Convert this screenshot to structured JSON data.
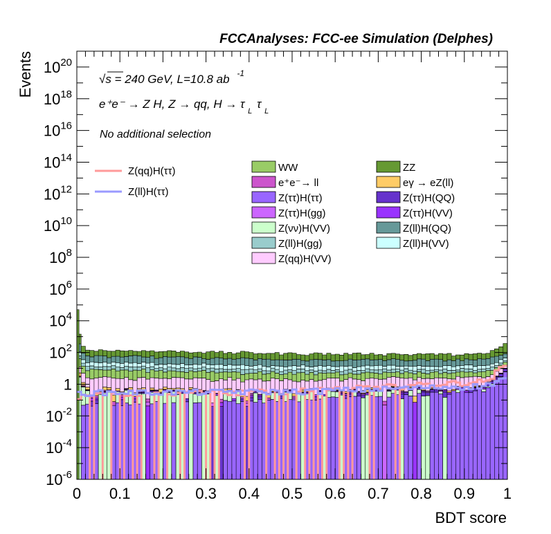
{
  "chart_data": {
    "type": "histogram",
    "title": "FCCAnalyses: FCC-ee Simulation (Delphes)",
    "xlabel": "BDT score",
    "ylabel": "Events",
    "xlim": [
      0,
      1
    ],
    "ylim": [
      1e-06,
      1e+21
    ],
    "log_y": true,
    "x_ticks": [
      "0",
      "0.1",
      "0.2",
      "0.3",
      "0.4",
      "0.5",
      "0.6",
      "0.7",
      "0.8",
      "0.9",
      "1"
    ],
    "y_ticks": [
      {
        "base": "10",
        "exp": "20"
      },
      {
        "base": "10",
        "exp": "18"
      },
      {
        "base": "10",
        "exp": "16"
      },
      {
        "base": "10",
        "exp": "14"
      },
      {
        "base": "10",
        "exp": "12"
      },
      {
        "base": "10",
        "exp": "10"
      },
      {
        "base": "10",
        "exp": "8"
      },
      {
        "base": "10",
        "exp": "6"
      },
      {
        "base": "10",
        "exp": "4"
      },
      {
        "base": "10",
        "exp": "2"
      },
      {
        "base": "1",
        "exp": ""
      },
      {
        "base": "10",
        "exp": "-2"
      },
      {
        "base": "10",
        "exp": "-4"
      },
      {
        "base": "10",
        "exp": "-6"
      }
    ],
    "annotations": {
      "energy": "√s = 240 GeV, L=10.8 ab",
      "energy_exp": "-1",
      "process": "e⁺e⁻ → Z H, Z → qq, H → τ",
      "process_sub1": "L",
      "process_tau2": "τ",
      "process_sub2": "L",
      "selection": "No additional selection"
    },
    "signals": [
      {
        "name": "Z(qq)H(ττ)",
        "color": "#ff9a9a",
        "level": [
          0.1,
          0.25,
          0.35,
          1.5,
          20
        ]
      },
      {
        "name": "Z(ll)H(ττ)",
        "color": "#9a9aff",
        "level": [
          0.25,
          0.3,
          0.35,
          0.8,
          3
        ]
      }
    ],
    "backgrounds": [
      {
        "name": "WW",
        "color": "#99cc66",
        "level": [
          40,
          6,
          3,
          3,
          12
        ]
      },
      {
        "name": "ZZ",
        "color": "#669933",
        "level": [
          2000,
          80,
          50,
          40,
          300
        ]
      },
      {
        "name": "e⁺e⁻→ ll",
        "color": "#cc55cc",
        "level": [
          0.5,
          0.05,
          0.03,
          0.03,
          0.05
        ]
      },
      {
        "name": "eγ → eZ(ll)",
        "color": "#ffcc66",
        "level": [
          5,
          0.2,
          0.1,
          0.1,
          0.2
        ]
      },
      {
        "name": "Z(ττ)H(ττ)",
        "color": "#9966ff",
        "level": [
          0.03,
          0.05,
          0.1,
          0.4,
          8
        ]
      },
      {
        "name": "Z(ττ)H(QQ)",
        "color": "#6633cc",
        "level": [
          0.1,
          0.05,
          0.05,
          0.2,
          3
        ]
      },
      {
        "name": "Z(ττ)H(gg)",
        "color": "#cc66ff",
        "level": [
          0.05,
          0.03,
          0.03,
          0.05,
          0.3
        ]
      },
      {
        "name": "Z(ττ)H(VV)",
        "color": "#9933ff",
        "level": [
          0.05,
          0.04,
          0.04,
          0.1,
          1
        ]
      },
      {
        "name": "Z(νν)H(VV)",
        "color": "#ccffcc",
        "level": [
          5,
          0.3,
          0.2,
          0.15,
          0.3
        ]
      },
      {
        "name": "Z(ll)H(QQ)",
        "color": "#669999",
        "level": [
          500,
          40,
          20,
          20,
          60
        ]
      },
      {
        "name": "Z(ll)H(gg)",
        "color": "#99cccc",
        "level": [
          50,
          5,
          3,
          3,
          8
        ]
      },
      {
        "name": "Z(ll)H(VV)",
        "color": "#ccffff",
        "level": [
          100,
          10,
          6,
          6,
          20
        ]
      },
      {
        "name": "Z(qq)H(VV)",
        "color": "#ffccff",
        "level": [
          10,
          2,
          1.5,
          2,
          8
        ]
      }
    ]
  }
}
